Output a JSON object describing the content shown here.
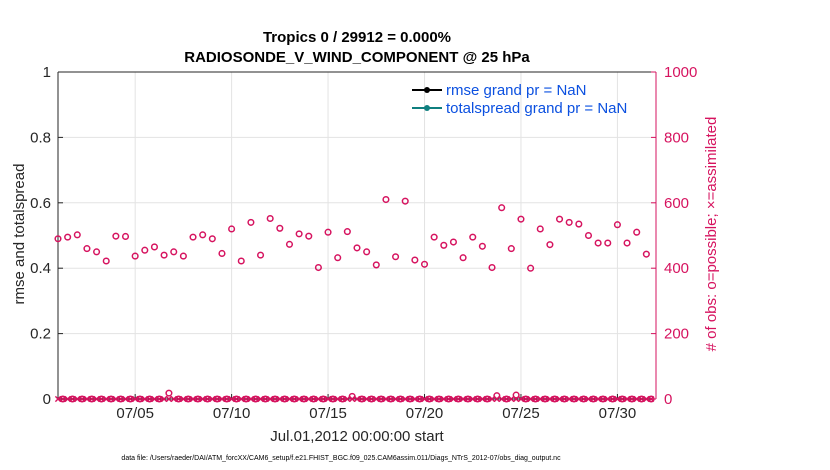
{
  "chart_data": {
    "type": "scatter",
    "title": "Tropics 0 / 29912 = 0.000%",
    "subtitle": "RADIOSONDE_V_WIND_COMPONENT @ 25 hPa",
    "xlabel": "Jul.01,2012 00:00:00 start",
    "ylabel": "rmse and totalspread",
    "y2label": "# of obs: o=possible; ×=assimilated",
    "xlim": [
      1,
      32
    ],
    "ylim": [
      0,
      1
    ],
    "y2lim": [
      0,
      1000
    ],
    "x_ticks": [
      5,
      10,
      15,
      20,
      25,
      30
    ],
    "x_tick_labels": [
      "07/05",
      "07/10",
      "07/15",
      "07/20",
      "07/25",
      "07/30"
    ],
    "y_ticks": [
      0,
      0.2,
      0.4,
      0.6,
      0.8,
      1
    ],
    "y_tick_labels": [
      "0",
      "0.2",
      "0.4",
      "0.6",
      "0.8",
      "1"
    ],
    "y2_ticks": [
      0,
      200,
      400,
      600,
      800,
      1000
    ],
    "y2_tick_labels": [
      "0",
      "200",
      "400",
      "600",
      "800",
      "1000"
    ],
    "grid": true,
    "legend_position": "top-right",
    "legend": [
      {
        "label": "rmse grand pr = NaN",
        "color": "#000000"
      },
      {
        "label": "totalspread grand pr = NaN",
        "color": "#0f7f7f"
      }
    ],
    "series": [
      {
        "name": "rmse grand pr = NaN",
        "color": "#000000",
        "x": [],
        "y": []
      },
      {
        "name": "totalspread grand pr = NaN",
        "color": "#0f7f7f",
        "x": [],
        "y": []
      },
      {
        "name": "possible",
        "axis": "right",
        "marker": "circle",
        "color": "#d6135f",
        "x": [
          1.0,
          1.25,
          1.5,
          1.75,
          2.0,
          2.25,
          2.5,
          2.75,
          3.0,
          3.25,
          3.5,
          3.75,
          4.0,
          4.25,
          4.5,
          4.75,
          5.0,
          5.25,
          5.5,
          5.75,
          6.0,
          6.25,
          6.5,
          6.75,
          7.0,
          7.25,
          7.5,
          7.75,
          8.0,
          8.25,
          8.5,
          8.75,
          9.0,
          9.25,
          9.5,
          9.75,
          10.0,
          10.25,
          10.5,
          10.75,
          11.0,
          11.25,
          11.5,
          11.75,
          12.0,
          12.25,
          12.5,
          12.75,
          13.0,
          13.25,
          13.5,
          13.75,
          14.0,
          14.25,
          14.5,
          14.75,
          15.0,
          15.25,
          15.5,
          15.75,
          16.0,
          16.25,
          16.5,
          16.75,
          17.0,
          17.25,
          17.5,
          17.75,
          18.0,
          18.25,
          18.5,
          18.75,
          19.0,
          19.25,
          19.5,
          19.75,
          20.0,
          20.25,
          20.5,
          20.75,
          21.0,
          21.25,
          21.5,
          21.75,
          22.0,
          22.25,
          22.5,
          22.75,
          23.0,
          23.25,
          23.5,
          23.75,
          24.0,
          24.25,
          24.5,
          24.75,
          25.0,
          25.25,
          25.5,
          25.75,
          26.0,
          26.25,
          26.5,
          26.75,
          27.0,
          27.25,
          27.5,
          27.75,
          28.0,
          28.25,
          28.5,
          28.75,
          29.0,
          29.25,
          29.5,
          29.75,
          30.0,
          30.25,
          30.5,
          30.75,
          31.0,
          31.25,
          31.5,
          31.75
        ],
        "y": [
          490,
          0,
          495,
          0,
          502,
          0,
          460,
          0,
          450,
          0,
          422,
          0,
          498,
          0,
          497,
          0,
          437,
          0,
          455,
          0,
          465,
          0,
          440,
          18,
          450,
          0,
          437,
          0,
          495,
          0,
          502,
          0,
          490,
          0,
          445,
          0,
          520,
          0,
          422,
          0,
          540,
          0,
          440,
          0,
          552,
          0,
          522,
          0,
          473,
          0,
          505,
          0,
          498,
          0,
          402,
          0,
          510,
          0,
          432,
          0,
          512,
          8,
          462,
          0,
          450,
          0,
          410,
          0,
          610,
          0,
          435,
          0,
          605,
          0,
          425,
          0,
          412,
          0,
          495,
          0,
          470,
          0,
          480,
          0,
          432,
          0,
          495,
          0,
          467,
          0,
          402,
          10,
          585,
          0,
          460,
          12,
          550,
          0,
          400,
          0,
          520,
          0,
          472,
          0,
          550,
          0,
          540,
          0,
          535,
          0,
          500,
          0,
          477,
          0,
          477,
          0,
          533,
          0,
          477,
          0,
          510,
          0,
          443,
          0
        ]
      },
      {
        "name": "assimilated",
        "axis": "right",
        "marker": "x",
        "color": "#d6135f",
        "x": [
          1.0,
          1.25,
          1.5,
          1.75,
          2.0,
          2.25,
          2.5,
          2.75,
          3.0,
          3.25,
          3.5,
          3.75,
          4.0,
          4.25,
          4.5,
          4.75,
          5.0,
          5.25,
          5.5,
          5.75,
          6.0,
          6.25,
          6.5,
          6.75,
          7.0,
          7.25,
          7.5,
          7.75,
          8.0,
          8.25,
          8.5,
          8.75,
          9.0,
          9.25,
          9.5,
          9.75,
          10.0,
          10.25,
          10.5,
          10.75,
          11.0,
          11.25,
          11.5,
          11.75,
          12.0,
          12.25,
          12.5,
          12.75,
          13.0,
          13.25,
          13.5,
          13.75,
          14.0,
          14.25,
          14.5,
          14.75,
          15.0,
          15.25,
          15.5,
          15.75,
          16.0,
          16.25,
          16.5,
          16.75,
          17.0,
          17.25,
          17.5,
          17.75,
          18.0,
          18.25,
          18.5,
          18.75,
          19.0,
          19.25,
          19.5,
          19.75,
          20.0,
          20.25,
          20.5,
          20.75,
          21.0,
          21.25,
          21.5,
          21.75,
          22.0,
          22.25,
          22.5,
          22.75,
          23.0,
          23.25,
          23.5,
          23.75,
          24.0,
          24.25,
          24.5,
          24.75,
          25.0,
          25.25,
          25.5,
          25.75,
          26.0,
          26.25,
          26.5,
          26.75,
          27.0,
          27.25,
          27.5,
          27.75,
          28.0,
          28.25,
          28.5,
          28.75,
          29.0,
          29.25,
          29.5,
          29.75,
          30.0,
          30.25,
          30.5,
          30.75,
          31.0,
          31.25,
          31.5,
          31.75
        ],
        "y": [
          0,
          0,
          0,
          0,
          0,
          0,
          0,
          0,
          0,
          0,
          0,
          0,
          0,
          0,
          0,
          0,
          0,
          0,
          0,
          0,
          0,
          0,
          0,
          0,
          0,
          0,
          0,
          0,
          0,
          0,
          0,
          0,
          0,
          0,
          0,
          0,
          0,
          0,
          0,
          0,
          0,
          0,
          0,
          0,
          0,
          0,
          0,
          0,
          0,
          0,
          0,
          0,
          0,
          0,
          0,
          0,
          0,
          0,
          0,
          0,
          0,
          0,
          0,
          0,
          0,
          0,
          0,
          0,
          0,
          0,
          0,
          0,
          0,
          0,
          0,
          0,
          0,
          0,
          0,
          0,
          0,
          0,
          0,
          0,
          0,
          0,
          0,
          0,
          0,
          0,
          0,
          0,
          0,
          0,
          0,
          0,
          0,
          0,
          0,
          0,
          0,
          0,
          0,
          0,
          0,
          0,
          0,
          0,
          0,
          0,
          0,
          0,
          0,
          0,
          0,
          0,
          0,
          0,
          0,
          0,
          0,
          0,
          0,
          0
        ]
      }
    ],
    "footnote": "data file: /Users/raeder/DAI/ATM_forcXX/CAM6_setup/f.e21.FHIST_BGC.f09_025.CAM6assim.011/Diags_NTrS_2012-07/obs_diag_output.nc"
  }
}
